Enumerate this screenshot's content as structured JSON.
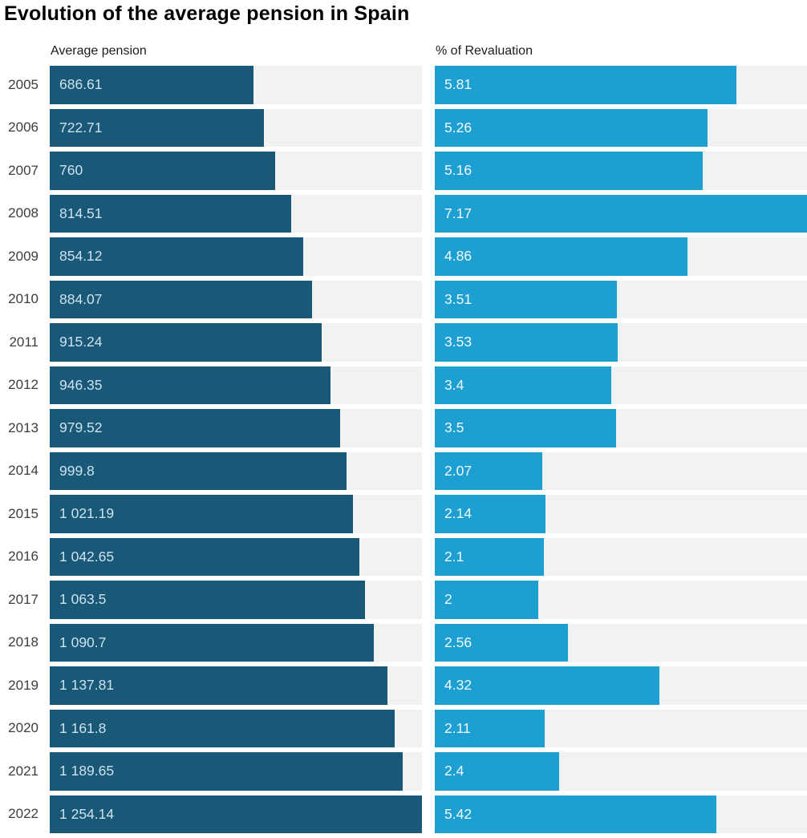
{
  "page": {
    "background": "#ffffff"
  },
  "colors": {
    "title_text": "#000000",
    "header_text": "#1c1c1c",
    "year_text": "#3d3d3d",
    "track": "#f1f2f2",
    "pension_bar": "#1a5878",
    "revaluation_bar": "#1e9fd2",
    "pension_value_text": "#cde2ef",
    "revaluation_value_text": "#f0f9fd"
  },
  "chart_data": {
    "type": "bar",
    "orientation": "horizontal",
    "title": "Evolution of the average pension in Spain",
    "grid": false,
    "legend_position": "column-headers",
    "categories": [
      "2005",
      "2006",
      "2007",
      "2008",
      "2009",
      "2010",
      "2011",
      "2012",
      "2013",
      "2014",
      "2015",
      "2016",
      "2017",
      "2018",
      "2019",
      "2020",
      "2021",
      "2022"
    ],
    "series": [
      {
        "name": "Average pension",
        "values": [
          686.61,
          722.71,
          760,
          814.51,
          854.12,
          884.07,
          915.24,
          946.35,
          979.52,
          999.8,
          1021.19,
          1042.65,
          1063.5,
          1090.7,
          1137.81,
          1161.8,
          1189.65,
          1254.14
        ],
        "labels": [
          "686.61",
          "722.71",
          "760",
          "814.51",
          "854.12",
          "884.07",
          "915.24",
          "946.35",
          "979.52",
          "999.8",
          "1 021.19",
          "1 042.65",
          "1 063.5",
          "1 090.7",
          "1 137.81",
          "1 161.8",
          "1 189.65",
          "1 254.14"
        ],
        "xlim": [
          0,
          1254.14
        ],
        "color": "#1a5878",
        "label_color": "#cde2ef"
      },
      {
        "name": "% of Revaluation",
        "values": [
          5.81,
          5.26,
          5.16,
          7.17,
          4.86,
          3.51,
          3.53,
          3.4,
          3.5,
          2.07,
          2.14,
          2.1,
          2,
          2.56,
          4.32,
          2.11,
          2.4,
          5.42
        ],
        "labels": [
          "5.81",
          "5.26",
          "5.16",
          "7.17",
          "4.86",
          "3.51",
          "3.53",
          "3.4",
          "3.5",
          "2.07",
          "2.14",
          "2.1",
          "2",
          "2.56",
          "4.32",
          "2.11",
          "2.4",
          "5.42"
        ],
        "xlim": [
          0,
          7.17
        ],
        "color": "#1e9fd2",
        "label_color": "#f0f9fd"
      }
    ]
  }
}
